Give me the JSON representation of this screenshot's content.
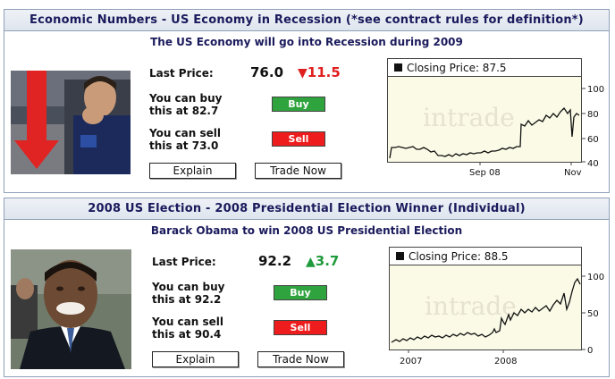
{
  "markets": [
    {
      "header": "Economic Numbers - US Economy in Recession (*see contract rules for definition*)",
      "subtitle": "The US Economy will go into Recession during 2009",
      "last_price_label": "Last Price:",
      "last_price": "76.0",
      "change": "11.5",
      "change_direction": "down",
      "buy_text_1": "You can buy",
      "buy_text_2": "this at 82.7",
      "sell_text_1": "You can sell",
      "sell_text_2": "this at 73.0",
      "buy_button": "Buy",
      "sell_button": "Sell",
      "explain_button": "Explain",
      "trade_button": "Trade Now",
      "chart": {
        "legend": "Closing Price: 87.5",
        "watermark": "intrade",
        "y_ticks": [
          "100",
          "80",
          "60",
          "40"
        ],
        "x_ticks": [
          "Sep 08",
          "Nov"
        ]
      }
    },
    {
      "header": "2008 US Election - 2008 Presidential Election Winner (Individual)",
      "subtitle": "Barack Obama to win 2008 US Presidential Election",
      "last_price_label": "Last Price:",
      "last_price": "92.2",
      "change": "3.7",
      "change_direction": "up",
      "buy_text_1": "You can buy",
      "buy_text_2": "this at 92.2",
      "sell_text_1": "You can sell",
      "sell_text_2": "this at 90.4",
      "buy_button": "Buy",
      "sell_button": "Sell",
      "explain_button": "Explain",
      "trade_button": "Trade Now",
      "chart": {
        "legend": "Closing Price: 88.5",
        "watermark": "intrade",
        "y_ticks": [
          "100",
          "50",
          "0"
        ],
        "x_ticks": [
          "2007",
          "2008"
        ]
      }
    }
  ],
  "colors": {
    "header_text": "#1a1a5c",
    "chart_bg": "#fafae6",
    "down": "#e01f1f",
    "up": "#1f9a3c",
    "buy": "#2fa33d",
    "sell": "#ee1c1c"
  },
  "icons": [
    "red-down-arrow-icon",
    "green-up-arrow-icon",
    "legend-square-icon"
  ]
}
